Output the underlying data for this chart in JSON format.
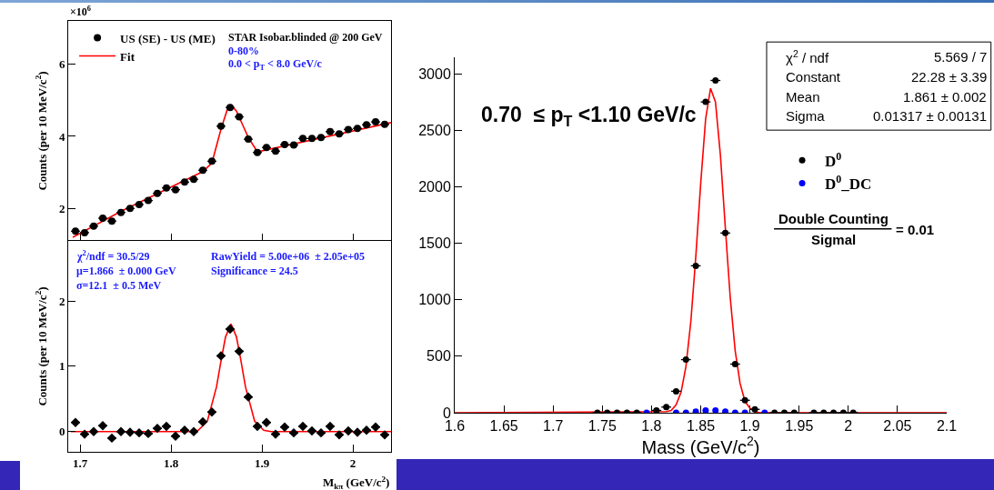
{
  "chart_data": [
    {
      "type": "scatter",
      "ylabel": "Counts (per 10 MeV/c$^{2}$)",
      "legend": "top left",
      "marker": "circle",
      "tick_labels": "y",
      "annotations": [
        "×10$^{6}$",
        "STAR Isobar.blinded @ 200 GeV",
        "0-80%",
        "0.0 < p$_{T}$ < 8.0 GeV/c"
      ],
      "xlim": [
        1.687,
        2.042
      ],
      "xticks": [
        {
          "value": 1.7,
          "label": null
        },
        {
          "value": 1.8,
          "label": null
        },
        {
          "value": 1.9,
          "label": null
        },
        {
          "value": 2,
          "label": null
        }
      ],
      "ylim": [
        1.1,
        7.2
      ],
      "yticks": [
        2,
        4,
        6
      ],
      "x": [
        1.695,
        1.705,
        1.715,
        1.725,
        1.735,
        1.745,
        1.755,
        1.765,
        1.775,
        1.785,
        1.795,
        1.805,
        1.815,
        1.825,
        1.835,
        1.845,
        1.855,
        1.865,
        1.875,
        1.885,
        1.895,
        1.905,
        1.915,
        1.925,
        1.935,
        1.945,
        1.955,
        1.965,
        1.975,
        1.985,
        1.995,
        2.005,
        2.015,
        2.025,
        2.035
      ],
      "series": [
        {
          "name": "US (SE) - US (ME)",
          "color": "#000000",
          "xerrors": [
            0.005,
            0.005,
            0.005,
            0.005,
            0.005,
            0.005,
            0.005,
            0.005,
            0.005,
            0.005,
            0.005,
            0.005,
            0.005,
            0.005,
            0.005,
            0.005,
            0.005,
            0.005,
            0.005,
            0.005,
            0.005,
            0.005,
            0.005,
            0.005,
            0.005,
            0.005,
            0.005,
            0.005,
            0.005,
            0.005,
            0.005,
            0.005,
            0.005,
            0.005,
            0.005
          ],
          "values": [
            1.37,
            1.33,
            1.51,
            1.73,
            1.65,
            1.89,
            2.0,
            2.11,
            2.22,
            2.42,
            2.57,
            2.52,
            2.73,
            2.81,
            3.06,
            3.31,
            4.28,
            4.8,
            4.54,
            3.92,
            3.55,
            3.69,
            3.59,
            3.77,
            3.76,
            3.94,
            3.94,
            3.97,
            4.13,
            4.07,
            4.19,
            4.22,
            4.32,
            4.4,
            4.33
          ]
        },
        {
          "name": "Fit",
          "type": "line",
          "marker": "none",
          "color": "#ff0000",
          "x": [
            1.692,
            1.745,
            1.835,
            1.845,
            1.855,
            1.862,
            1.866,
            1.872,
            1.88,
            1.885,
            1.895,
            2.042
          ],
          "values": [
            1.2,
            1.92,
            3.02,
            3.26,
            4.2,
            4.75,
            4.87,
            4.7,
            4.25,
            3.97,
            3.57,
            4.38
          ]
        }
      ]
    },
    {
      "type": "scatter",
      "ylabel": "Counts (per 10 MeV/c$^{2}$)",
      "xlabel": "M$_{kπ}$ (GeV/c$^{2}$)",
      "marker": "diamond",
      "annotations": [
        "χ$^{2}$/ndf = 30.5/29",
        "μ=1.866  ± 0.000 GeV",
        "σ=12.1  ± 0.5 MeV",
        "RawYield = 5.00e+06  ± 2.05e+05",
        "Significance = 24.5"
      ],
      "xlim": [
        1.687,
        2.042
      ],
      "xticks": [
        1.7,
        1.8,
        1.9,
        2
      ],
      "ylim": [
        -0.31,
        2.92
      ],
      "yticks": [
        0,
        1,
        2
      ],
      "x": [
        1.695,
        1.705,
        1.715,
        1.725,
        1.735,
        1.745,
        1.755,
        1.765,
        1.775,
        1.785,
        1.795,
        1.805,
        1.815,
        1.825,
        1.835,
        1.845,
        1.855,
        1.865,
        1.875,
        1.885,
        1.895,
        1.905,
        1.915,
        1.925,
        1.935,
        1.945,
        1.955,
        1.965,
        1.975,
        1.985,
        1.995,
        2.005,
        2.015,
        2.025,
        2.035
      ],
      "series": [
        {
          "color": "#000000",
          "xerrors": [
            0.005,
            0.005,
            0.005,
            0.005,
            0.005,
            0.005,
            0.005,
            0.005,
            0.005,
            0.005,
            0.005,
            0.005,
            0.005,
            0.005,
            0.005,
            0.005,
            0.005,
            0.005,
            0.005,
            0.005,
            0.005,
            0.005,
            0.005,
            0.005,
            0.005,
            0.005,
            0.005,
            0.005,
            0.005,
            0.005,
            0.005,
            0.005,
            0.005,
            0.005,
            0.005
          ],
          "values": [
            0.14,
            -0.04,
            0.0,
            0.09,
            -0.1,
            0.0,
            -0.01,
            -0.02,
            -0.03,
            0.05,
            0.08,
            -0.07,
            0.02,
            0.0,
            0.15,
            0.3,
            1.16,
            1.57,
            1.23,
            0.53,
            0.08,
            0.14,
            -0.04,
            0.07,
            -0.02,
            0.08,
            0.01,
            -0.02,
            0.08,
            -0.05,
            0.01,
            -0.01,
            0.02,
            0.07,
            -0.05
          ]
        },
        {
          "type": "line",
          "marker": "none",
          "color": "#ff0000",
          "x": [
            1.69,
            1.82,
            1.83,
            1.84,
            1.85,
            1.855,
            1.86,
            1.866,
            1.872,
            1.877,
            1.882,
            1.892,
            1.902,
            1.91,
            2.042
          ],
          "values": [
            0,
            0,
            0.02,
            0.16,
            0.68,
            1.08,
            1.45,
            1.65,
            1.45,
            1.08,
            0.68,
            0.16,
            0.02,
            0,
            0
          ]
        }
      ]
    },
    {
      "type": "scatter",
      "xlabel": "Mass (GeV/c$^{2}$)",
      "legend": "right",
      "marker": "circle",
      "annotations": [
        "0.70  ≤ p$_{T}$ <1.10 GeV/c",
        "χ$^{2}$ / ndf",
        "5.569 / 7",
        "Constant",
        "22.28 ± 3.39",
        "Mean",
        "1.861 ± 0.002",
        "Sigma",
        "0.01317 ± 0.00131",
        "Double Counting",
        "Sigmal",
        "= 0.01"
      ],
      "xlim": [
        1.6,
        2.1
      ],
      "xticks": [
        1.6,
        1.65,
        1.7,
        1.75,
        1.8,
        1.85,
        1.9,
        1.95,
        2,
        2.05,
        2.1
      ],
      "ylim": [
        0,
        3145
      ],
      "yticks": [
        0,
        500,
        1000,
        1500,
        2000,
        2500,
        3000
      ],
      "series": [
        {
          "name": "D$^{0}$",
          "color": "#000000",
          "x": [
            1.745,
            1.755,
            1.765,
            1.775,
            1.785,
            1.805,
            1.815,
            1.825,
            1.835,
            1.845,
            1.855,
            1.865,
            1.875,
            1.885,
            1.895,
            1.905,
            1.925,
            1.935,
            1.945,
            1.965,
            1.975,
            1.985,
            1.995,
            2.005
          ],
          "xerrors": [
            0.005,
            0.005,
            0.005,
            0.005,
            0.005,
            0.005,
            0.005,
            0.005,
            0.005,
            0.005,
            0.005,
            0.005,
            0.005,
            0.005,
            0.005,
            0.005,
            0.005,
            0.005,
            0.005,
            0.005,
            0.005,
            0.005,
            0.005,
            0.005
          ],
          "values": [
            0,
            0,
            0,
            0,
            0,
            20,
            50,
            190,
            470,
            1300,
            2750,
            2940,
            1590,
            430,
            110,
            30,
            0,
            0,
            0,
            0,
            0,
            0,
            0,
            0
          ]
        },
        {
          "name": "D$^{0}$_DC",
          "color": "#0000ff",
          "x": [
            1.795,
            1.825,
            1.835,
            1.845,
            1.855,
            1.865,
            1.875,
            1.885,
            1.895,
            1.915
          ],
          "values": [
            0,
            0,
            0,
            10,
            20,
            20,
            10,
            0,
            0,
            0
          ]
        },
        {
          "type": "line",
          "marker": "none",
          "color": "#ff0000",
          "x": [
            1.6,
            1.815,
            1.82,
            1.825,
            1.83,
            1.835,
            1.84,
            1.845,
            1.85,
            1.855,
            1.86,
            1.865,
            1.87,
            1.875,
            1.88,
            1.885,
            1.89,
            1.895,
            1.9,
            1.905,
            1.91,
            2.1
          ],
          "values": [
            0,
            10,
            20,
            70,
            180,
            410,
            810,
            1380,
            2030,
            2600,
            2870,
            2750,
            2280,
            1640,
            1020,
            550,
            260,
            100,
            40,
            10,
            0,
            0
          ]
        }
      ]
    }
  ]
}
